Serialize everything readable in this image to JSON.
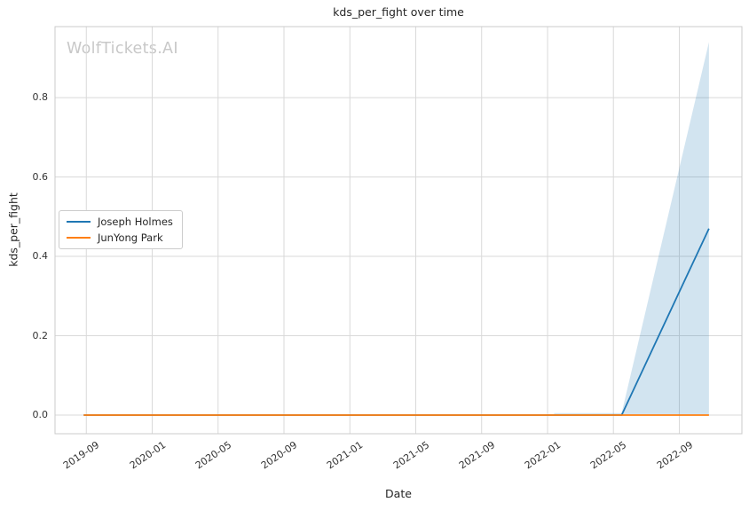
{
  "app": {
    "watermark": "WolfTickets.AI"
  },
  "colors": {
    "series_blue": "#1f77b4",
    "series_orange": "#ff7f0e",
    "band_fill": "rgba(31,119,180,0.2)",
    "grid": "#d9d9d9",
    "spine": "#cbcbcb",
    "text": "#262626",
    "tick_text": "#333333",
    "watermark_text": "#c8c8c8",
    "background": "#ffffff"
  },
  "chart_data": {
    "type": "line",
    "title": "kds_per_fight over time",
    "xlabel": "Date",
    "ylabel": "kds_per_fight",
    "grid": true,
    "legend_position": "center-left",
    "x_ticks": [
      {
        "t": 8,
        "label": "2019-09"
      },
      {
        "t": 12,
        "label": "2020-01"
      },
      {
        "t": 16,
        "label": "2020-05"
      },
      {
        "t": 20,
        "label": "2020-09"
      },
      {
        "t": 24,
        "label": "2021-01"
      },
      {
        "t": 28,
        "label": "2021-05"
      },
      {
        "t": 32,
        "label": "2021-09"
      },
      {
        "t": 36,
        "label": "2022-01"
      },
      {
        "t": 40,
        "label": "2022-05"
      },
      {
        "t": 44,
        "label": "2022-09"
      }
    ],
    "y_ticks": [
      {
        "v": 0.0,
        "label": "0.0"
      },
      {
        "v": 0.2,
        "label": "0.2"
      },
      {
        "v": 0.4,
        "label": "0.4"
      },
      {
        "v": 0.6,
        "label": "0.6"
      },
      {
        "v": 0.8,
        "label": "0.8"
      }
    ],
    "t_unit": "months since 2019-01",
    "xlim": [
      6.1,
      47.8
    ],
    "ylim": [
      -0.047,
      0.979
    ],
    "series": [
      {
        "name": "Joseph Holmes",
        "color": "#1f77b4",
        "points": [
          {
            "date": "2019-08",
            "t": 7.84,
            "y": 0.0
          },
          {
            "date": "2022-05",
            "t": 40.5,
            "y": 0.0
          },
          {
            "date": "2022-10",
            "t": 45.8,
            "y": 0.47
          }
        ],
        "band": {
          "fill": "rgba(31,119,180,0.2)",
          "lower_y": 0.0,
          "points_upper": [
            {
              "date": "2022-01",
              "t": 36.4,
              "y": 0.005
            },
            {
              "date": "2022-05",
              "t": 40.5,
              "y": 0.005
            },
            {
              "date": "2022-10",
              "t": 45.8,
              "y": 0.94
            }
          ]
        }
      },
      {
        "name": "JunYong Park",
        "color": "#ff7f0e",
        "points": [
          {
            "date": "2019-08",
            "t": 7.84,
            "y": 0.0
          },
          {
            "date": "2022-10",
            "t": 45.8,
            "y": 0.0
          }
        ]
      }
    ]
  }
}
